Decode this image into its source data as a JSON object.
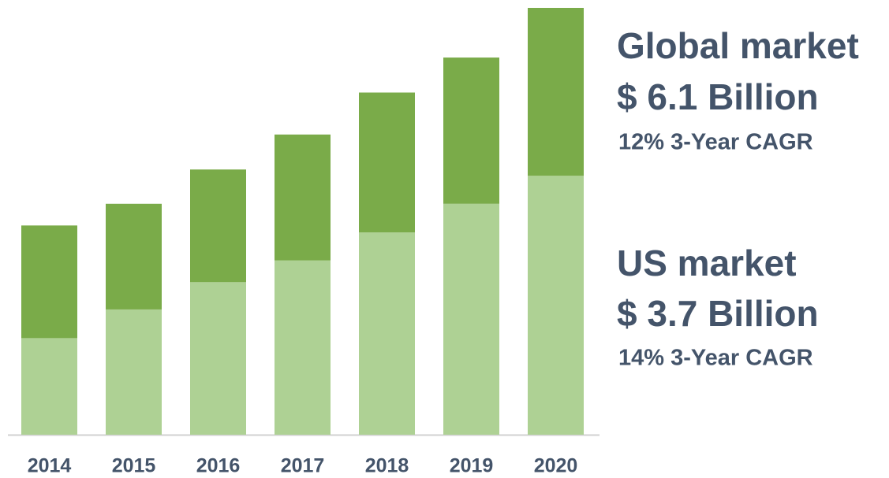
{
  "chart_data": {
    "type": "stacked_bar",
    "categories": [
      "2014",
      "2015",
      "2016",
      "2017",
      "2018",
      "2019",
      "2020"
    ],
    "series": [
      {
        "color": "#aed194",
        "values": [
          1.38,
          1.79,
          2.18,
          2.49,
          2.89,
          3.3,
          3.7
        ]
      },
      {
        "color": "#7aab49",
        "values": [
          1.61,
          1.51,
          1.61,
          1.8,
          2.0,
          2.09,
          2.4
        ]
      }
    ],
    "ylim": [
      0,
      6.1
    ],
    "annotations": [
      "Global market",
      "$ 6.1 Billion",
      "12% 3-Year CAGR",
      "US market",
      "$ 3.7 Billion",
      "14% 3-Year CAGR"
    ]
  }
}
